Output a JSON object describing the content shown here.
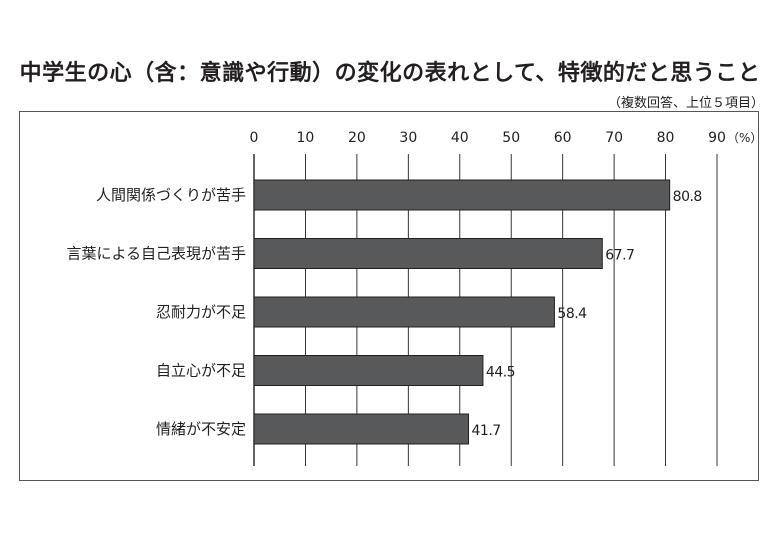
{
  "title": "中学生の心（含：意識や行動）の変化の表れとして、特徴的だと思うこと",
  "subtitle": "（複数回答、上位５項目）",
  "colors": {
    "bar": "#58595b",
    "bar_stroke": "#231f20",
    "grid": "#231f20",
    "text": "#231f20"
  },
  "chart_data": {
    "type": "bar",
    "orientation": "horizontal",
    "categories": [
      "人間関係づくりが苦手",
      "言葉による自己表現が苦手",
      "忍耐力が不足",
      "自立心が不足",
      "情緒が不安定"
    ],
    "values": [
      80.8,
      67.7,
      58.4,
      44.5,
      41.7
    ],
    "value_labels": [
      "80.8",
      "67.7",
      "58.4",
      "44.5",
      "41.7"
    ],
    "xlim": [
      0,
      90
    ],
    "xticks": [
      0,
      10,
      20,
      30,
      40,
      50,
      60,
      70,
      80,
      90
    ],
    "xunit": "（%）",
    "grid": true
  }
}
